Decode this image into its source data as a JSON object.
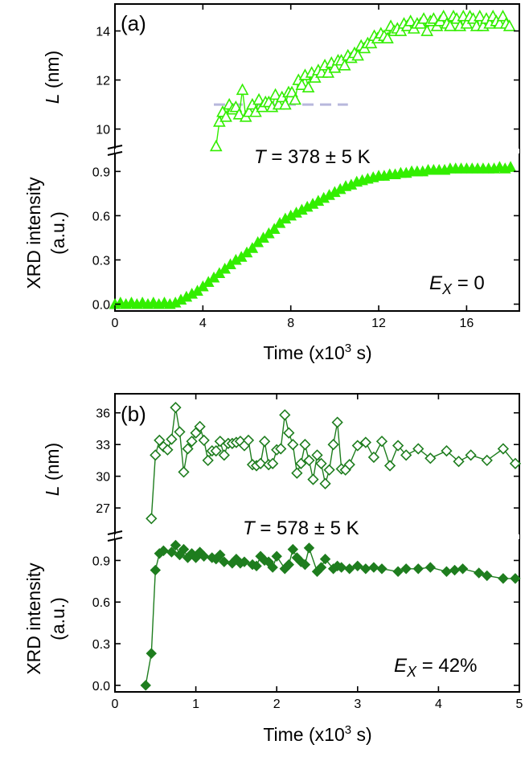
{
  "colors": {
    "panel_a": "#33ee00",
    "panel_b": "#1e7d1e",
    "reference_line": "#b8b8dc",
    "axis": "#000000"
  },
  "chart_data": [
    {
      "type": "scatter",
      "panel_label": "(a)",
      "xlabel": "Time (x10",
      "xlabel_sup": "3",
      "xlabel_end": " s)",
      "xlim": [
        0,
        18.4
      ],
      "xticks": [
        0,
        4,
        8,
        12,
        16
      ],
      "xtick_labels": [
        "0",
        "4",
        "8",
        "12",
        "16"
      ],
      "temperature": {
        "prefix": "T",
        "text": " = 378 ± 5 K"
      },
      "efficiency": {
        "prefix": "E",
        "sub": "X",
        "text": " = 0"
      },
      "top": {
        "ylabel_italic": "L",
        "ylabel": " (nm)",
        "ylim": [
          9.2,
          15
        ],
        "yticks": [
          10,
          12,
          14
        ],
        "ytick_labels": [
          "10",
          "12",
          "14"
        ],
        "marker": "open-triangle",
        "reference_y": 11,
        "reference_x": [
          4.5,
          10.6
        ],
        "x": [
          4.6,
          4.75,
          4.9,
          5.05,
          5.2,
          5.35,
          5.5,
          5.65,
          5.8,
          5.95,
          6.1,
          6.25,
          6.4,
          6.55,
          6.7,
          6.85,
          7.0,
          7.15,
          7.3,
          7.45,
          7.6,
          7.75,
          7.9,
          8.05,
          8.2,
          8.35,
          8.5,
          8.65,
          8.8,
          8.95,
          9.1,
          9.25,
          9.4,
          9.55,
          9.7,
          9.85,
          10.0,
          10.15,
          10.3,
          10.45,
          10.6,
          10.75,
          10.9,
          11.05,
          11.2,
          11.35,
          11.5,
          11.65,
          11.8,
          11.95,
          12.1,
          12.25,
          12.4,
          12.55,
          12.7,
          12.85,
          13.0,
          13.15,
          13.3,
          13.45,
          13.6,
          13.75,
          13.9,
          14.05,
          14.2,
          14.35,
          14.5,
          14.65,
          14.8,
          14.95,
          15.1,
          15.25,
          15.4,
          15.55,
          15.7,
          15.85,
          16.0,
          16.15,
          16.3,
          16.45,
          16.6,
          16.75,
          16.9,
          17.05,
          17.2,
          17.35,
          17.5,
          17.65,
          17.8,
          17.95
        ],
        "y": [
          9.3,
          10.3,
          10.7,
          10.5,
          11.0,
          10.8,
          10.9,
          10.6,
          11.6,
          10.5,
          10.7,
          11.0,
          10.7,
          11.2,
          10.9,
          11.1,
          11.1,
          10.9,
          11.4,
          11.0,
          11.3,
          11.0,
          11.5,
          11.5,
          11.2,
          12.0,
          11.8,
          12.2,
          11.7,
          12.3,
          12.1,
          12.4,
          12.3,
          12.6,
          12.3,
          12.7,
          12.5,
          12.8,
          12.8,
          12.6,
          13.0,
          12.9,
          13.1,
          13.0,
          13.4,
          13.3,
          13.5,
          13.5,
          13.8,
          13.7,
          13.9,
          13.8,
          13.7,
          14.2,
          14.0,
          14.1,
          14.0,
          14.3,
          14.2,
          14.4,
          14.1,
          14.3,
          14.3,
          14.5,
          14.0,
          14.4,
          14.5,
          14.2,
          14.4,
          14.6,
          14.3,
          14.2,
          14.6,
          14.5,
          14.2,
          14.6,
          14.3,
          14.6,
          14.5,
          14.2,
          14.6,
          14.2,
          14.5,
          14.3,
          14.6,
          14.4,
          14.3,
          14.6,
          14.3,
          14.2
        ]
      },
      "bottom": {
        "ylabel": "XRD intensity",
        "ylabel2": "(a.u.)",
        "ylim": [
          -0.03,
          1.0
        ],
        "yticks": [
          0.0,
          0.3,
          0.6,
          0.9
        ],
        "ytick_labels": [
          "0.0",
          "0.3",
          "0.6",
          "0.9"
        ],
        "marker": "filled-triangle",
        "x": [
          0.0,
          0.25,
          0.5,
          0.75,
          1.0,
          1.25,
          1.5,
          1.75,
          2.0,
          2.25,
          2.5,
          2.75,
          3.0,
          3.25,
          3.5,
          3.75,
          4.0,
          4.25,
          4.5,
          4.75,
          5.0,
          5.25,
          5.5,
          5.75,
          6.0,
          6.25,
          6.5,
          6.75,
          7.0,
          7.25,
          7.5,
          7.75,
          8.0,
          8.25,
          8.5,
          8.75,
          9.0,
          9.25,
          9.5,
          9.75,
          10.0,
          10.25,
          10.5,
          10.75,
          11.0,
          11.25,
          11.5,
          11.75,
          12.0,
          12.25,
          12.5,
          12.75,
          13.0,
          13.25,
          13.5,
          13.75,
          14.0,
          14.25,
          14.5,
          14.75,
          15.0,
          15.25,
          15.5,
          15.75,
          16.0,
          16.25,
          16.5,
          16.75,
          17.0,
          17.25,
          17.5,
          17.75,
          18.0
        ],
        "y": [
          0.0,
          0.01,
          0.0,
          0.01,
          0.0,
          0.01,
          0.0,
          0.01,
          0.0,
          0.01,
          0.0,
          0.01,
          0.03,
          0.05,
          0.07,
          0.09,
          0.12,
          0.15,
          0.18,
          0.21,
          0.24,
          0.27,
          0.3,
          0.32,
          0.35,
          0.38,
          0.42,
          0.45,
          0.48,
          0.51,
          0.55,
          0.58,
          0.6,
          0.62,
          0.64,
          0.66,
          0.68,
          0.7,
          0.72,
          0.74,
          0.76,
          0.78,
          0.8,
          0.81,
          0.83,
          0.84,
          0.85,
          0.86,
          0.87,
          0.87,
          0.88,
          0.88,
          0.89,
          0.89,
          0.9,
          0.9,
          0.9,
          0.91,
          0.91,
          0.91,
          0.91,
          0.92,
          0.92,
          0.92,
          0.92,
          0.92,
          0.92,
          0.92,
          0.92,
          0.92,
          0.93,
          0.92,
          0.93
        ]
      }
    },
    {
      "type": "line",
      "panel_label": "(b)",
      "xlabel": "Time (x10",
      "xlabel_sup": "3",
      "xlabel_end": " s)",
      "xlim": [
        0,
        5
      ],
      "xticks": [
        0,
        1,
        2,
        3,
        4,
        5
      ],
      "xtick_labels": [
        "0",
        "1",
        "2",
        "3",
        "4",
        "5"
      ],
      "temperature": {
        "prefix": "T",
        "text": " = 578 ± 5 K"
      },
      "efficiency": {
        "prefix": "E",
        "sub": "X",
        "text": " = 42%"
      },
      "top": {
        "ylabel_italic": "L",
        "ylabel": " (nm)",
        "ylim": [
          24.5,
          37.5
        ],
        "yticks": [
          27,
          30,
          33,
          36
        ],
        "ytick_labels": [
          "27",
          "30",
          "33",
          "36"
        ],
        "marker": "open-diamond",
        "x": [
          0.45,
          0.5,
          0.55,
          0.6,
          0.65,
          0.7,
          0.75,
          0.8,
          0.85,
          0.9,
          0.95,
          1.0,
          1.05,
          1.1,
          1.15,
          1.2,
          1.25,
          1.3,
          1.35,
          1.4,
          1.45,
          1.5,
          1.55,
          1.6,
          1.65,
          1.7,
          1.75,
          1.8,
          1.85,
          1.9,
          1.95,
          2.0,
          2.05,
          2.1,
          2.15,
          2.2,
          2.25,
          2.3,
          2.35,
          2.4,
          2.45,
          2.5,
          2.55,
          2.6,
          2.65,
          2.7,
          2.75,
          2.8,
          2.85,
          2.9,
          3.0,
          3.1,
          3.2,
          3.3,
          3.4,
          3.5,
          3.6,
          3.75,
          3.9,
          4.1,
          4.25,
          4.4,
          4.6,
          4.8,
          4.95
        ],
        "y": [
          26.0,
          32.0,
          33.4,
          32.8,
          32.5,
          33.5,
          36.5,
          34.2,
          30.4,
          32.6,
          33.3,
          34.1,
          34.7,
          33.4,
          31.5,
          32.4,
          32.4,
          33.3,
          32.0,
          33.1,
          33.1,
          33.2,
          33.3,
          32.9,
          33.4,
          31.1,
          31.0,
          31.2,
          33.3,
          31.1,
          31.2,
          32.5,
          32.6,
          35.8,
          34.1,
          33.0,
          30.3,
          31.2,
          33.0,
          31.5,
          29.7,
          32.0,
          31.2,
          29.3,
          30.6,
          33.0,
          35.1,
          30.7,
          30.6,
          31.1,
          32.9,
          33.2,
          31.8,
          33.3,
          31.0,
          32.9,
          32.0,
          32.6,
          31.7,
          32.4,
          31.4,
          32.0,
          31.5,
          32.6,
          31.2
        ]
      },
      "bottom": {
        "ylabel": "XRD intensity",
        "ylabel2": "(a.u.)",
        "ylim": [
          -0.03,
          1.03
        ],
        "yticks": [
          0.0,
          0.3,
          0.6,
          0.9
        ],
        "ytick_labels": [
          "0.0",
          "0.3",
          "0.6",
          "0.9"
        ],
        "marker": "filled-diamond",
        "x": [
          0.38,
          0.45,
          0.5,
          0.55,
          0.6,
          0.7,
          0.75,
          0.8,
          0.85,
          0.9,
          0.95,
          1.0,
          1.05,
          1.1,
          1.2,
          1.25,
          1.3,
          1.35,
          1.45,
          1.5,
          1.55,
          1.6,
          1.7,
          1.75,
          1.8,
          1.85,
          1.9,
          1.95,
          2.0,
          2.1,
          2.15,
          2.2,
          2.25,
          2.3,
          2.35,
          2.4,
          2.5,
          2.55,
          2.6,
          2.7,
          2.75,
          2.8,
          2.9,
          3.0,
          3.1,
          3.2,
          3.3,
          3.5,
          3.6,
          3.75,
          3.9,
          4.1,
          4.2,
          4.3,
          4.5,
          4.6,
          4.8,
          4.95
        ],
        "y": [
          0.0,
          0.23,
          0.83,
          0.95,
          0.97,
          0.96,
          1.01,
          0.94,
          0.98,
          0.92,
          0.95,
          0.92,
          0.96,
          0.93,
          0.92,
          0.91,
          0.94,
          0.89,
          0.88,
          0.91,
          0.88,
          0.89,
          0.87,
          0.86,
          0.93,
          0.9,
          0.89,
          0.85,
          0.93,
          0.84,
          0.87,
          0.98,
          0.92,
          0.89,
          0.87,
          0.99,
          0.82,
          0.85,
          0.91,
          0.84,
          0.86,
          0.85,
          0.84,
          0.86,
          0.84,
          0.85,
          0.84,
          0.82,
          0.84,
          0.84,
          0.85,
          0.82,
          0.83,
          0.84,
          0.81,
          0.79,
          0.77,
          0.77
        ]
      }
    }
  ]
}
